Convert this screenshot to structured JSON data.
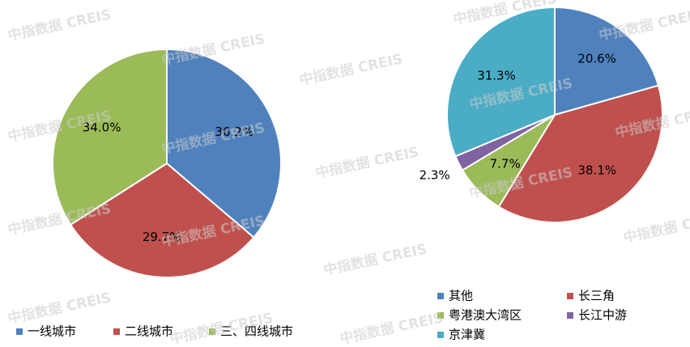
{
  "watermark": "中指数据 CREIS",
  "chart_data": [
    {
      "type": "pie",
      "categories": [
        "一线城市",
        "二线城市",
        "三、四线城市"
      ],
      "values": [
        36.2,
        29.7,
        34.0
      ],
      "value_labels": [
        "36.2%",
        "29.7%",
        "34.0%"
      ],
      "colors": [
        "#4f81bd",
        "#c0504d",
        "#9bbb59"
      ],
      "legend": "bottom"
    },
    {
      "type": "pie",
      "categories": [
        "其他",
        "长三角",
        "粤港澳大湾区",
        "长江中游",
        "京津冀"
      ],
      "values": [
        20.6,
        38.1,
        7.7,
        2.3,
        31.3
      ],
      "value_labels": [
        "20.6%",
        "38.1%",
        "7.7%",
        "2.3%",
        "31.3%"
      ],
      "colors": [
        "#4f81bd",
        "#c0504d",
        "#9bbb59",
        "#8064a2",
        "#4bacc6"
      ],
      "legend": "bottom"
    }
  ]
}
